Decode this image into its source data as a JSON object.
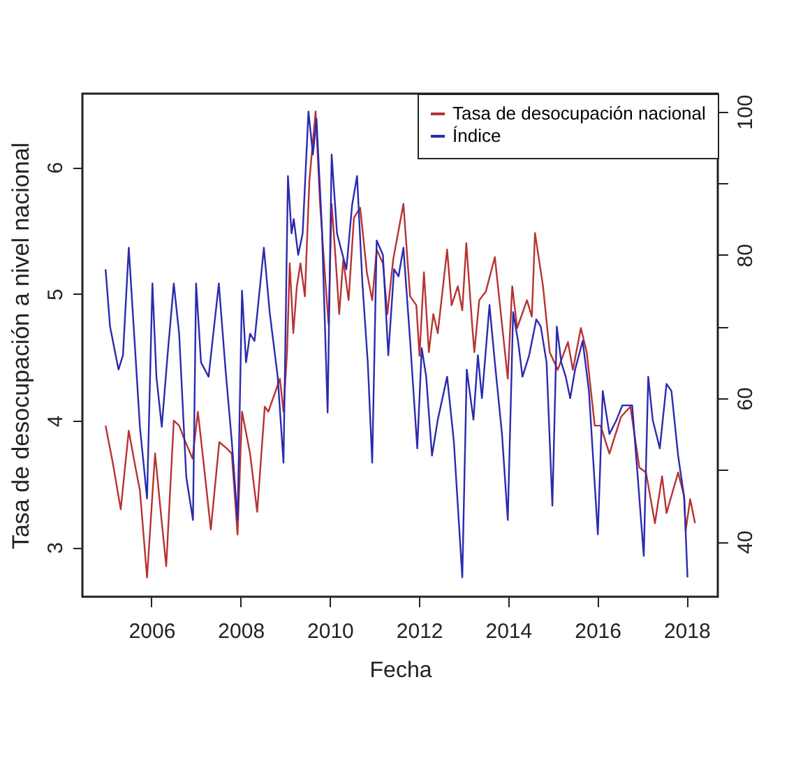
{
  "chart_data": {
    "type": "line",
    "xlabel": "Fecha",
    "ylabel": "Tasa de desocupación a nivel nacional",
    "xlim": [
      2004.45,
      2018.7
    ],
    "xticks": [
      2006,
      2008,
      2010,
      2012,
      2014,
      2016,
      2018
    ],
    "ylim": [
      2.61,
      6.58
    ],
    "yticks": [
      3,
      4,
      5,
      6
    ],
    "y2lim": [
      32.3,
      102.5
    ],
    "y2ticks": [
      40,
      {
        "value": 50,
        "label": null
      },
      60,
      {
        "value": 70,
        "label": null
      },
      80,
      {
        "value": 90,
        "label": null
      },
      100
    ],
    "grid": false,
    "legend": "top right",
    "series": [
      {
        "name": "Tasa de desocupación nacional",
        "color": "#b83232",
        "x": [
          2004.97,
          2005.13,
          2005.31,
          2005.49,
          2005.64,
          2005.74,
          2005.9,
          2006.08,
          2006.21,
          2006.33,
          2006.5,
          2006.62,
          2006.74,
          2006.92,
          2007.04,
          2007.18,
          2007.33,
          2007.52,
          2007.69,
          2007.8,
          2007.93,
          2008.03,
          2008.21,
          2008.37,
          2008.54,
          2008.62,
          2008.77,
          2008.88,
          2008.96,
          2009.04,
          2009.1,
          2009.18,
          2009.26,
          2009.34,
          2009.44,
          2009.54,
          2009.68,
          2009.78,
          2009.88,
          2009.97,
          2010.04,
          2010.13,
          2010.21,
          2010.3,
          2010.42,
          2010.54,
          2010.68,
          2010.83,
          2010.95,
          2011.05,
          2011.19,
          2011.29,
          2011.42,
          2011.65,
          2011.8,
          2011.94,
          2012.01,
          2012.11,
          2012.22,
          2012.32,
          2012.42,
          2012.63,
          2012.73,
          2012.87,
          2012.97,
          2013.06,
          2013.19,
          2013.24,
          2013.35,
          2013.5,
          2013.7,
          2013.99,
          2014.09,
          2014.2,
          2014.42,
          2014.53,
          2014.6,
          2014.78,
          2014.93,
          2015.11,
          2015.34,
          2015.45,
          2015.63,
          2015.76,
          2015.94,
          2016.07,
          2016.27,
          2016.53,
          2016.74,
          2016.94,
          2017.09,
          2017.29,
          2017.45,
          2017.55,
          2017.81,
          2017.94,
          2017.98,
          2018.08,
          2018.19
        ],
        "values": [
          3.96,
          3.67,
          3.3,
          3.92,
          3.63,
          3.45,
          2.76,
          3.74,
          3.27,
          2.85,
          4.0,
          3.96,
          3.85,
          3.7,
          4.07,
          3.63,
          3.14,
          3.83,
          3.78,
          3.74,
          3.1,
          4.07,
          3.74,
          3.28,
          4.11,
          4.07,
          4.22,
          4.33,
          4.07,
          4.54,
          5.24,
          4.69,
          5.06,
          5.24,
          4.98,
          5.89,
          6.44,
          5.71,
          5.2,
          4.76,
          5.71,
          5.27,
          4.84,
          5.27,
          4.95,
          5.6,
          5.68,
          5.17,
          4.95,
          5.35,
          5.24,
          4.84,
          5.27,
          5.71,
          4.98,
          4.91,
          4.51,
          5.17,
          4.54,
          4.84,
          4.69,
          5.35,
          4.91,
          5.06,
          4.87,
          5.4,
          4.76,
          4.54,
          4.95,
          5.02,
          5.29,
          4.33,
          5.06,
          4.73,
          4.95,
          4.82,
          5.48,
          5.06,
          4.54,
          4.4,
          4.62,
          4.4,
          4.73,
          4.54,
          3.96,
          3.96,
          3.74,
          4.03,
          4.11,
          3.63,
          3.59,
          3.19,
          3.56,
          3.27,
          3.59,
          3.41,
          3.13,
          3.38,
          3.19
        ]
      },
      {
        "name": "Índice",
        "color": "#2a2ab0",
        "axis": "y2",
        "x": [
          2004.97,
          2005.07,
          2005.26,
          2005.36,
          2005.49,
          2005.61,
          2005.74,
          2005.9,
          2006.02,
          2006.11,
          2006.23,
          2006.36,
          2006.5,
          2006.62,
          2006.78,
          2006.93,
          2007.0,
          2007.11,
          2007.28,
          2007.51,
          2007.66,
          2007.8,
          2007.93,
          2008.03,
          2008.12,
          2008.21,
          2008.31,
          2008.52,
          2008.65,
          2008.83,
          2008.96,
          2009.06,
          2009.14,
          2009.19,
          2009.29,
          2009.39,
          2009.52,
          2009.62,
          2009.7,
          2009.82,
          2009.95,
          2010.04,
          2010.16,
          2010.37,
          2010.5,
          2010.61,
          2010.73,
          2010.85,
          2010.95,
          2011.05,
          2011.19,
          2011.31,
          2011.44,
          2011.54,
          2011.65,
          2011.8,
          2011.96,
          2012.06,
          2012.16,
          2012.29,
          2012.42,
          2012.63,
          2012.78,
          2012.97,
          2013.07,
          2013.22,
          2013.32,
          2013.41,
          2013.58,
          2013.7,
          2013.86,
          2013.99,
          2014.11,
          2014.22,
          2014.32,
          2014.47,
          2014.63,
          2014.73,
          2014.86,
          2014.99,
          2015.09,
          2015.19,
          2015.29,
          2015.39,
          2015.5,
          2015.67,
          2015.81,
          2016.01,
          2016.12,
          2016.27,
          2016.43,
          2016.56,
          2016.68,
          2016.78,
          2016.88,
          2017.04,
          2017.14,
          2017.24,
          2017.4,
          2017.55,
          2017.66,
          2017.81,
          2017.95,
          2018.02
        ],
        "values": [
          78,
          70,
          64,
          66,
          81,
          69,
          56,
          46,
          76,
          63,
          56,
          66,
          76,
          69,
          49,
          43,
          76,
          65,
          63,
          76,
          64,
          54,
          43,
          75,
          65,
          69,
          68,
          81,
          72,
          63,
          51,
          91,
          83,
          85,
          80,
          83,
          100,
          94,
          99,
          84,
          58,
          94,
          83,
          78,
          87,
          91,
          76,
          65,
          51,
          82,
          80,
          66,
          78,
          77,
          81,
          68,
          53,
          67,
          63,
          52,
          57,
          63,
          54,
          35,
          64,
          57,
          66,
          60,
          73,
          65,
          55,
          43,
          72,
          68,
          63,
          66,
          71,
          70,
          65,
          45,
          70,
          65,
          63,
          60,
          64,
          68,
          61,
          41,
          61,
          55,
          57,
          59,
          59,
          59,
          51,
          38,
          63,
          57,
          53,
          62,
          61,
          52,
          46,
          35
        ]
      }
    ]
  }
}
